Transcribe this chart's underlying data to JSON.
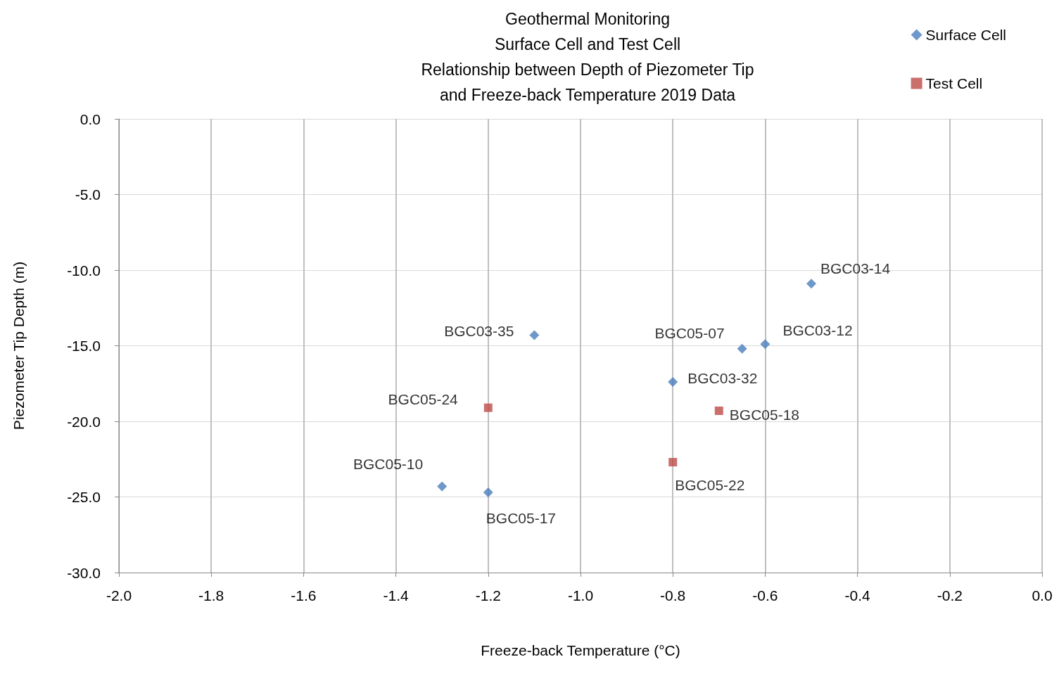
{
  "chart_data": {
    "type": "scatter",
    "title": "Geothermal Monitoring\nSurface Cell and Test Cell\nRelationship between Depth of Piezometer Tip\nand Freeze-back Temperature 2019 Data",
    "xlabel": "Freeze-back Temperature (°C)",
    "ylabel": "Piezometer Tip Depth (m)",
    "series": [
      {
        "name": "Surface Cell",
        "color": "#4a7ebb",
        "marker": "diamond",
        "x": [
          -0.5,
          -1.1,
          -0.65,
          -0.6,
          -0.8,
          -1.3,
          -1.2
        ],
        "values": [
          -10.9,
          -14.3,
          -15.2,
          -14.9,
          -17.4,
          -24.3,
          -24.7
        ]
      },
      {
        "name": "Test Cell",
        "color": "#be4b48",
        "marker": "square",
        "x": [
          -1.2,
          -0.7,
          -0.8
        ],
        "values": [
          -19.1,
          -19.3,
          -22.7
        ]
      }
    ],
    "annotations": [
      {
        "text": "BGC03-14",
        "x": -0.5,
        "y": -10.9
      },
      {
        "text": "BGC03-35",
        "x": -1.1,
        "y": -14.3
      },
      {
        "text": "BGC05-07",
        "x": -0.65,
        "y": -15.2
      },
      {
        "text": "BGC03-12",
        "x": -0.6,
        "y": -14.9
      },
      {
        "text": "BGC03-32",
        "x": -0.8,
        "y": -17.4
      },
      {
        "text": "BGC05-10",
        "x": -1.3,
        "y": -24.3
      },
      {
        "text": "BGC05-17",
        "x": -1.2,
        "y": -24.7
      },
      {
        "text": "BGC05-24",
        "x": -1.2,
        "y": -19.1
      },
      {
        "text": "BGC05-18",
        "x": -0.7,
        "y": -19.3
      },
      {
        "text": "BGC05-22",
        "x": -0.8,
        "y": -22.7
      }
    ],
    "xlim": [
      -2.0,
      0.0
    ],
    "xticks": [
      {
        "value": -2,
        "label": "-2.0"
      },
      {
        "value": -1.8,
        "label": "-1.8"
      },
      {
        "value": -1.6,
        "label": "-1.6"
      },
      {
        "value": -1.4,
        "label": "-1.4"
      },
      {
        "value": -1.2,
        "label": "-1.2"
      },
      {
        "value": -1,
        "label": "-1.0"
      },
      {
        "value": -0.8,
        "label": "-0.8"
      },
      {
        "value": -0.6,
        "label": "-0.6"
      },
      {
        "value": -0.4,
        "label": "-0.4"
      },
      {
        "value": -0.2,
        "label": "-0.2"
      },
      {
        "value": 0,
        "label": "0.0"
      }
    ],
    "ylim": [
      -30.0,
      0.0
    ],
    "yticks": [
      {
        "value": -30,
        "label": "-30.0"
      },
      {
        "value": -25,
        "label": "-25.0"
      },
      {
        "value": -20,
        "label": "-20.0"
      },
      {
        "value": -15,
        "label": "-15.0"
      },
      {
        "value": -10,
        "label": "-10.0"
      },
      {
        "value": -5,
        "label": "-5.0"
      },
      {
        "value": 0,
        "label": "0.0"
      }
    ],
    "grid": true,
    "legend": "top right"
  }
}
